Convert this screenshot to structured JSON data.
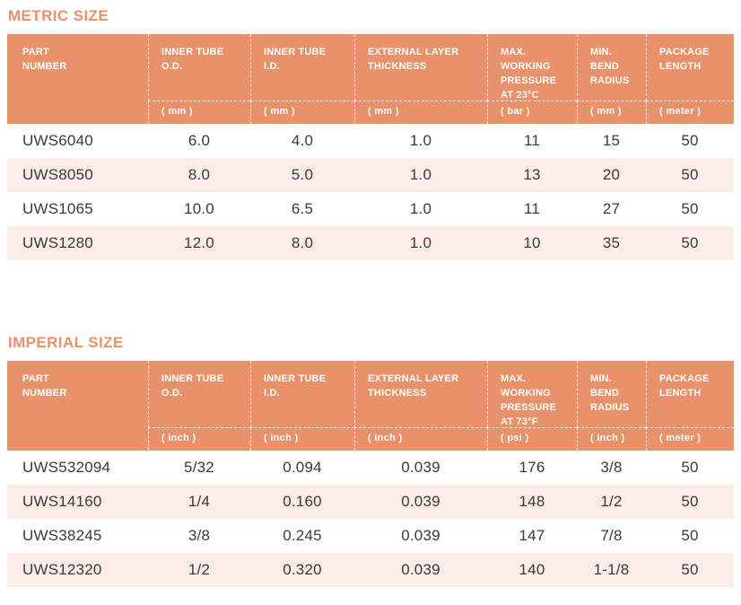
{
  "colors": {
    "accent": "#E8916B",
    "stripe": "#FAEDE8",
    "header_text": "#FFFFFF",
    "data_text": "#3A3A3A"
  },
  "tables": [
    {
      "title": "METRIC SIZE",
      "columns": [
        {
          "label": "PART\nNUMBER",
          "unit": ""
        },
        {
          "label": "INNER TUBE\nO.D.",
          "unit": "( mm )"
        },
        {
          "label": "INNER TUBE\nI.D.",
          "unit": "( mm )"
        },
        {
          "label": "EXTERNAL LAYER\nTHICKNESS",
          "unit": "( mm )"
        },
        {
          "label": "MAX.\nWORKING\nPRESSURE\nAT 23°C",
          "unit": "( bar )"
        },
        {
          "label": "MIN.\nBEND\nRADIUS",
          "unit": "( mm )"
        },
        {
          "label": "PACKAGE\nLENGTH",
          "unit": "( meter )"
        }
      ],
      "rows": [
        [
          "UWS6040",
          "6.0",
          "4.0",
          "1.0",
          "11",
          "15",
          "50"
        ],
        [
          "UWS8050",
          "8.0",
          "5.0",
          "1.0",
          "13",
          "20",
          "50"
        ],
        [
          "UWS1065",
          "10.0",
          "6.5",
          "1.0",
          "11",
          "27",
          "50"
        ],
        [
          "UWS1280",
          "12.0",
          "8.0",
          "1.0",
          "10",
          "35",
          "50"
        ]
      ]
    },
    {
      "title": "IMPERIAL SIZE",
      "columns": [
        {
          "label": "PART\nNUMBER",
          "unit": ""
        },
        {
          "label": "INNER TUBE\nO.D.",
          "unit": "( inch )"
        },
        {
          "label": "INNER TUBE\nI.D.",
          "unit": "( inch )"
        },
        {
          "label": "EXTERNAL LAYER\nTHICKNESS",
          "unit": "( inch )"
        },
        {
          "label": "MAX.\nWORKING\nPRESSURE\nAT 73°F",
          "unit": "( psi )"
        },
        {
          "label": "MIN.\nBEND\nRADIUS",
          "unit": "( inch )"
        },
        {
          "label": "PACKAGE\nLENGTH",
          "unit": "( meter )"
        }
      ],
      "rows": [
        [
          "UWS532094",
          "5/32",
          "0.094",
          "0.039",
          "176",
          "3/8",
          "50"
        ],
        [
          "UWS14160",
          "1/4",
          "0.160",
          "0.039",
          "148",
          "1/2",
          "50"
        ],
        [
          "UWS38245",
          "3/8",
          "0.245",
          "0.039",
          "147",
          "7/8",
          "50"
        ],
        [
          "UWS12320",
          "1/2",
          "0.320",
          "0.039",
          "140",
          "1-1/8",
          "50"
        ]
      ]
    }
  ]
}
